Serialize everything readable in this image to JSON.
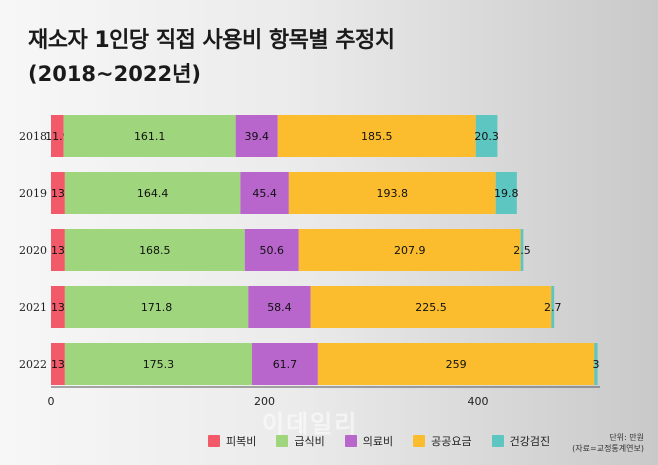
{
  "title": "재소자 1인당 직접 사용비 항목별 추정치",
  "subtitle": "(2018~2022년)",
  "watermark": "이데일리",
  "unit_label": "단위: 만원",
  "source_label": "(자료=교정통계연보)",
  "colors": {
    "피복비": "#f25a6a",
    "급식비": "#9fd67d",
    "의료비": "#b865cc",
    "공공요금": "#fbbd2e",
    "건강검진": "#5ec6c0"
  },
  "chart_data": {
    "type": "bar",
    "orientation": "horizontal",
    "stacked": true,
    "categories": [
      "2018",
      "2019",
      "2020",
      "2021",
      "2022"
    ],
    "series": [
      {
        "name": "피복비",
        "values": [
          11.9,
          13,
          13,
          13,
          13
        ]
      },
      {
        "name": "급식비",
        "values": [
          161.1,
          164.4,
          168.5,
          171.8,
          175.3
        ]
      },
      {
        "name": "의료비",
        "values": [
          39.4,
          45.4,
          50.6,
          58.4,
          61.7
        ]
      },
      {
        "name": "공공요금",
        "values": [
          185.5,
          193.8,
          207.9,
          225.5,
          259
        ]
      },
      {
        "name": "건강검진",
        "values": [
          20.3,
          19.8,
          2.5,
          2.7,
          3
        ]
      }
    ],
    "data_labels": [
      [
        "11.9",
        "161.1",
        "39.4",
        "185.5",
        "20.3"
      ],
      [
        "13",
        "164.4",
        "45.4",
        "193.8",
        "19.8"
      ],
      [
        "13",
        "168.5",
        "50.6",
        "207.9",
        "2.5"
      ],
      [
        "13",
        "171.8",
        "58.4",
        "225.5",
        "2.7"
      ],
      [
        "13",
        "175.3",
        "61.7",
        "259",
        "3"
      ]
    ],
    "xlim": [
      0,
      550
    ],
    "xticks": [
      0,
      200,
      400
    ],
    "legend_position": "bottom",
    "grid": false
  }
}
